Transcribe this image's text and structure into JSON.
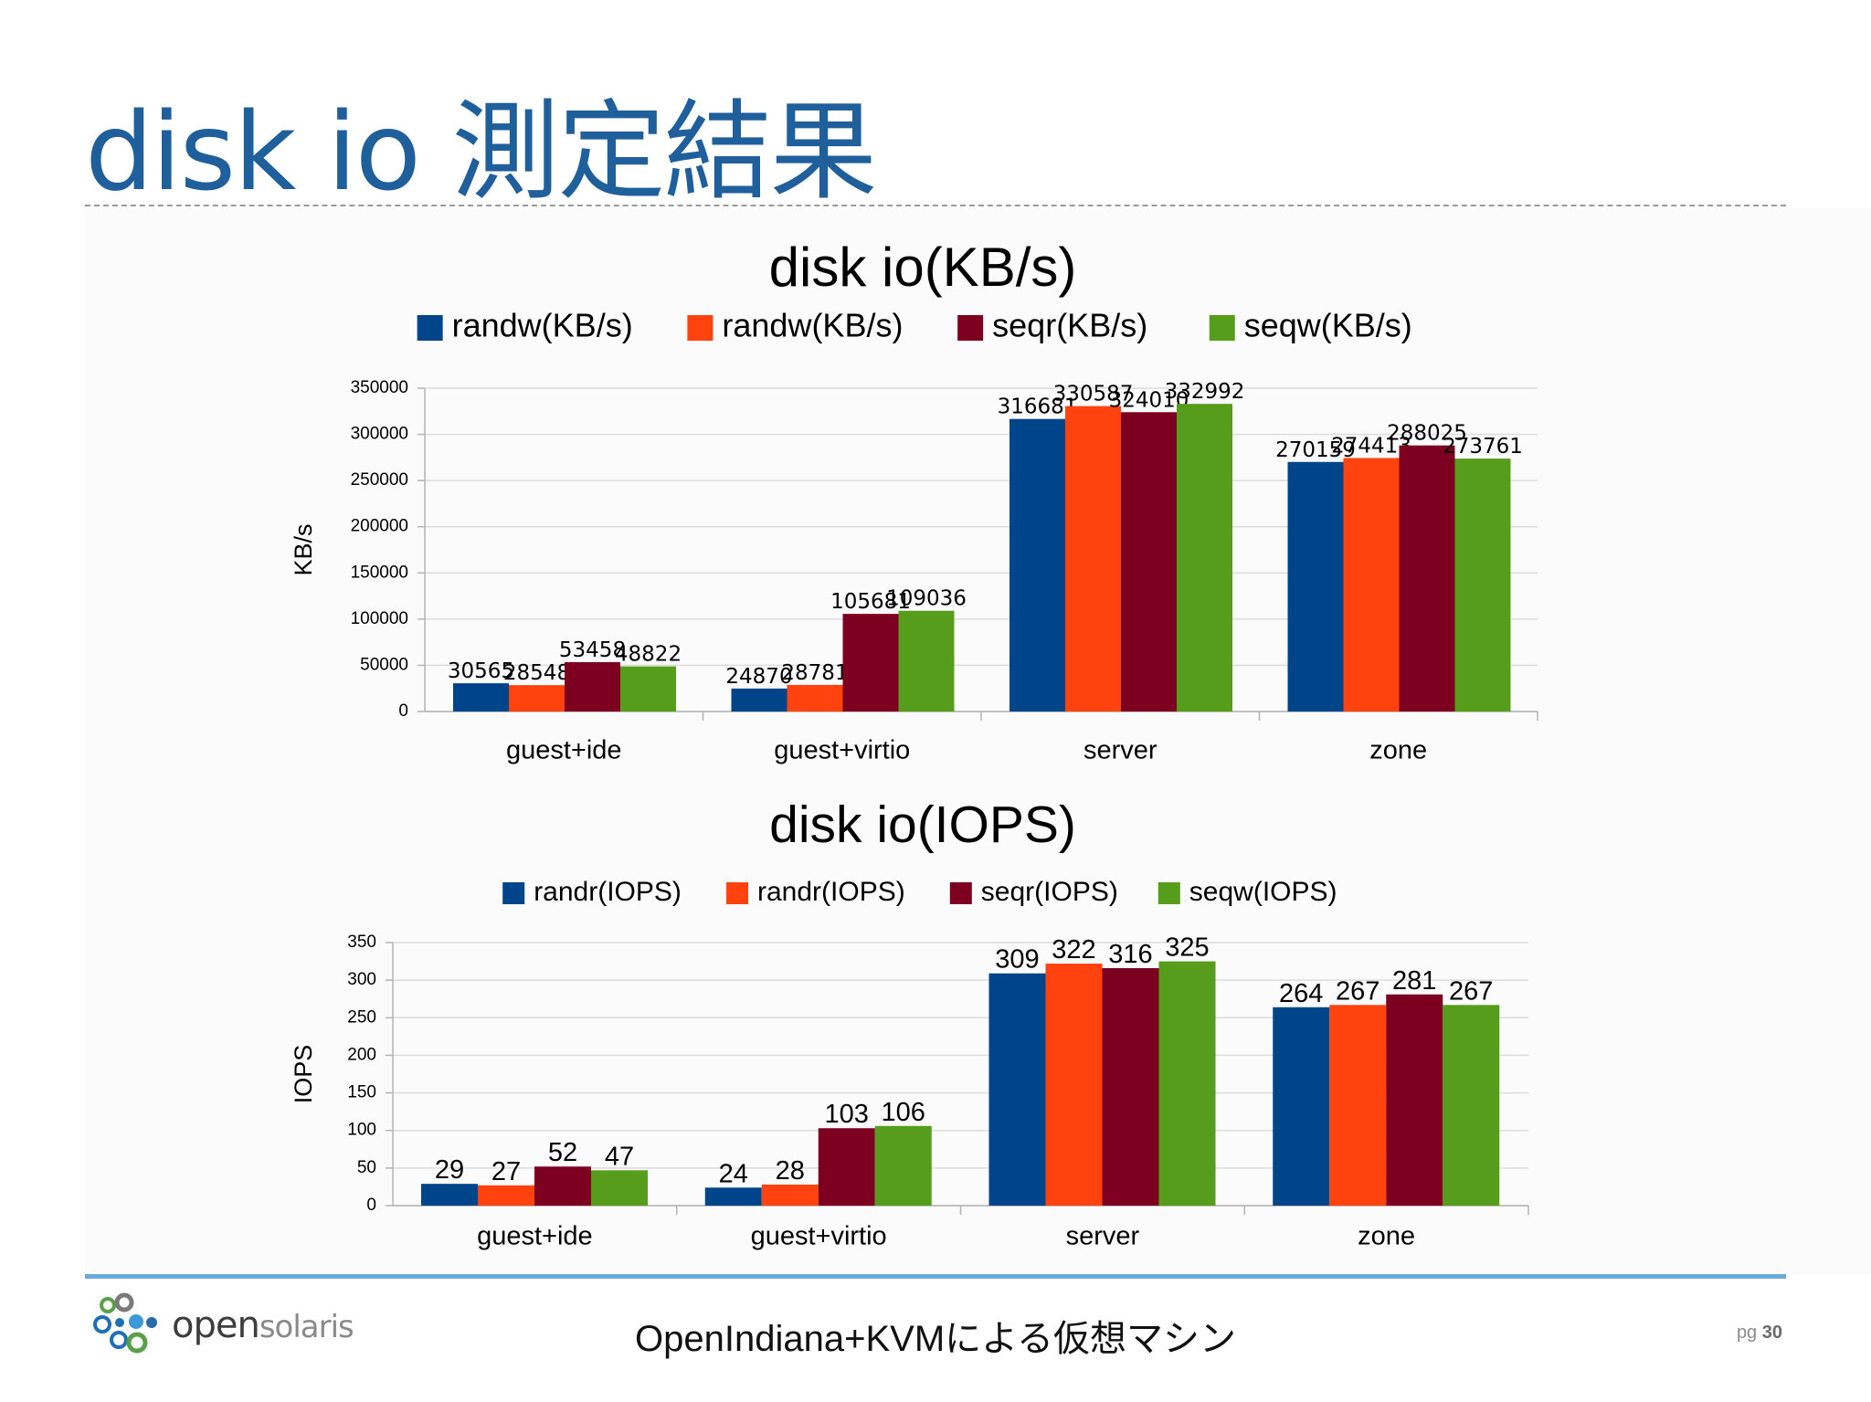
{
  "slide": {
    "title": "disk io  測定結果",
    "footer_text": "OpenIndiana+KVMによる仮想マシン",
    "page_prefix": "pg",
    "page_number": "30",
    "logo": {
      "text_main": "open",
      "text_light": "solaris"
    }
  },
  "colors": {
    "title": "#1f5f9c",
    "footer_rule": "#6aaad8"
  },
  "chart_data": [
    {
      "type": "bar",
      "title": "disk io(KB/s)",
      "ylabel": "KB/s",
      "xlabel": "",
      "ylim": [
        0,
        350000
      ],
      "yticks": [
        0,
        50000,
        100000,
        150000,
        200000,
        250000,
        300000,
        350000
      ],
      "categories": [
        "guest+ide",
        "guest+virtio",
        "server",
        "zone"
      ],
      "legend": "top",
      "grid": true,
      "series": [
        {
          "name": "randw(KB/s)",
          "color": "#00448a",
          "values": [
            30565,
            24870,
            316681,
            270159
          ]
        },
        {
          "name": "randw(KB/s)",
          "color": "#ff420e",
          "values": [
            28548,
            28781,
            330587,
            274413
          ]
        },
        {
          "name": "seqr(KB/s)",
          "color": "#7e0021",
          "values": [
            53458,
            105681,
            324010,
            288025
          ]
        },
        {
          "name": "seqw(KB/s)",
          "color": "#579d1c",
          "values": [
            48822,
            109036,
            332992,
            273761
          ]
        }
      ]
    },
    {
      "type": "bar",
      "title": "disk io(IOPS)",
      "ylabel": "IOPS",
      "xlabel": "",
      "ylim": [
        0,
        350
      ],
      "yticks": [
        0,
        50,
        100,
        150,
        200,
        250,
        300,
        350
      ],
      "categories": [
        "guest+ide",
        "guest+virtio",
        "server",
        "zone"
      ],
      "legend": "top",
      "grid": true,
      "series": [
        {
          "name": "randr(IOPS)",
          "color": "#00448a",
          "values": [
            29,
            24,
            309,
            264
          ]
        },
        {
          "name": "randr(IOPS)",
          "color": "#ff420e",
          "values": [
            27,
            28,
            322,
            267
          ]
        },
        {
          "name": "seqr(IOPS)",
          "color": "#7e0021",
          "values": [
            52,
            103,
            316,
            281
          ]
        },
        {
          "name": "seqw(IOPS)",
          "color": "#579d1c",
          "values": [
            47,
            106,
            325,
            267
          ]
        }
      ]
    }
  ]
}
